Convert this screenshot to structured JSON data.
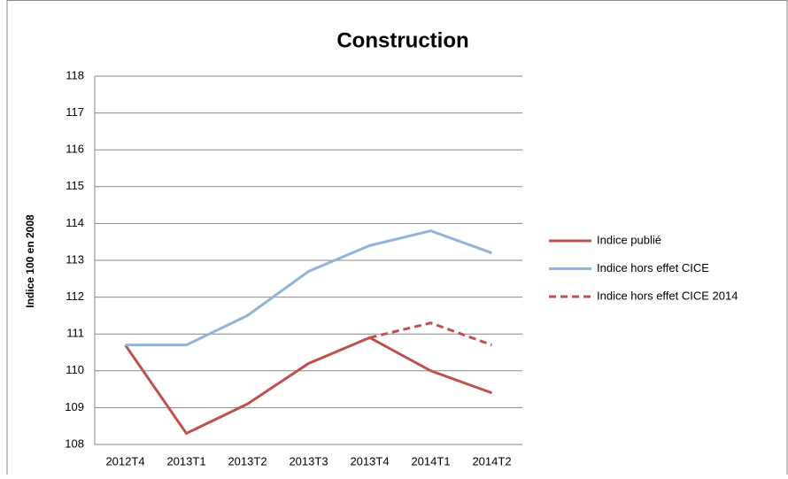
{
  "chart_data": {
    "type": "line",
    "title": "Construction",
    "y_label": "Indice 100 en 2008",
    "categories": [
      "2012T4",
      "2013T1",
      "2013T2",
      "2013T3",
      "2013T4",
      "2014T1",
      "2014T2"
    ],
    "series": [
      {
        "name": "Indice publié",
        "color": "#c0504d",
        "line_style": "solid",
        "values": [
          110.7,
          108.3,
          109.1,
          110.2,
          110.9,
          110.0,
          109.4
        ]
      },
      {
        "name": "Indice hors effet CICE",
        "color": "#95b3d7",
        "line_style": "solid",
        "values": [
          110.7,
          110.7,
          111.5,
          112.7,
          113.4,
          113.8,
          113.2
        ]
      },
      {
        "name": "Indice hors effet CICE 2014",
        "color": "#c0504d",
        "line_style": "dashed",
        "values": [
          null,
          null,
          null,
          null,
          110.9,
          111.3,
          110.7
        ]
      }
    ],
    "ylim": [
      108,
      118
    ],
    "yticks": [
      108,
      109,
      110,
      111,
      112,
      113,
      114,
      115,
      116,
      117,
      118
    ],
    "grid": true,
    "legend": "right"
  }
}
